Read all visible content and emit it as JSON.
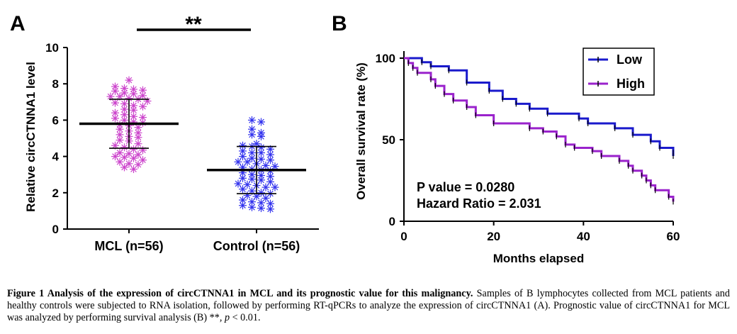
{
  "chart_data": [
    {
      "panel": "A",
      "type": "scatter",
      "ylabel": "Relative circCTNNA1 level",
      "ylim": [
        0,
        10
      ],
      "yticks": [
        0,
        2,
        4,
        6,
        8,
        10
      ],
      "categories": [
        "MCL (n=56)",
        "Control (n=56)"
      ],
      "significance": "**",
      "groups": [
        {
          "name": "MCL (n=56)",
          "color": "#cc44cc",
          "mean": 5.8,
          "sd": 1.35,
          "values": [
            8.2,
            7.85,
            7.75,
            7.7,
            7.65,
            7.6,
            7.5,
            7.45,
            7.35,
            7.3,
            7.3,
            7.2,
            7.15,
            7.05,
            6.95,
            6.9,
            6.8,
            6.75,
            6.6,
            6.55,
            6.4,
            6.3,
            6.2,
            6.15,
            6.1,
            6.0,
            5.9,
            5.85,
            5.75,
            5.7,
            5.6,
            5.5,
            5.4,
            5.3,
            5.2,
            5.1,
            5.05,
            4.9,
            4.85,
            4.7,
            4.6,
            4.5,
            4.4,
            4.35,
            4.2,
            4.15,
            4.1,
            4.0,
            3.95,
            3.9,
            3.8,
            3.7,
            3.6,
            3.55,
            3.4,
            3.3
          ]
        },
        {
          "name": "Control (n=56)",
          "color": "#3333ee",
          "mean": 3.25,
          "sd": 1.3,
          "values": [
            6.0,
            5.9,
            5.5,
            5.3,
            5.2,
            5.1,
            4.7,
            4.6,
            4.55,
            4.5,
            4.4,
            4.3,
            4.2,
            4.2,
            4.1,
            4.0,
            3.9,
            3.85,
            3.8,
            3.7,
            3.7,
            3.6,
            3.5,
            3.45,
            3.4,
            3.3,
            3.25,
            3.2,
            3.1,
            3.0,
            2.95,
            2.9,
            2.8,
            2.75,
            2.7,
            2.6,
            2.5,
            2.45,
            2.4,
            2.3,
            2.3,
            2.2,
            2.1,
            2.0,
            1.95,
            1.85,
            1.8,
            1.7,
            1.6,
            1.5,
            1.45,
            1.4,
            1.3,
            1.2,
            1.15,
            1.1
          ]
        }
      ]
    },
    {
      "panel": "B",
      "type": "line",
      "xlabel": "Months elapsed",
      "ylabel": "Overall survival rate (%)",
      "xlim": [
        0,
        60
      ],
      "ylim": [
        0,
        100
      ],
      "xticks": [
        0,
        20,
        40,
        60
      ],
      "yticks": [
        0,
        50,
        100
      ],
      "series": [
        {
          "name": "Low",
          "color": "#1a1acc",
          "points": [
            [
              0,
              100
            ],
            [
              4,
              97.5
            ],
            [
              6,
              95
            ],
            [
              10,
              92.5
            ],
            [
              14,
              85
            ],
            [
              19,
              80
            ],
            [
              22,
              75
            ],
            [
              25,
              72
            ],
            [
              28,
              69
            ],
            [
              32,
              66
            ],
            [
              39,
              63
            ],
            [
              41,
              60
            ],
            [
              47,
              57
            ],
            [
              51,
              53
            ],
            [
              55,
              49
            ],
            [
              57,
              45
            ],
            [
              60,
              42
            ],
            [
              60,
              40
            ]
          ]
        },
        {
          "name": "High",
          "color": "#9a22cc",
          "points": [
            [
              0,
              100
            ],
            [
              1,
              97
            ],
            [
              2,
              94
            ],
            [
              3,
              91
            ],
            [
              6,
              87
            ],
            [
              7,
              83
            ],
            [
              9,
              78
            ],
            [
              11,
              74
            ],
            [
              14,
              70
            ],
            [
              16,
              65
            ],
            [
              20,
              60
            ],
            [
              28,
              57
            ],
            [
              31,
              55
            ],
            [
              34,
              52
            ],
            [
              36,
              47
            ],
            [
              38,
              45
            ],
            [
              42,
              43
            ],
            [
              44,
              40
            ],
            [
              48,
              37
            ],
            [
              50,
              34
            ],
            [
              51,
              31
            ],
            [
              53,
              28
            ],
            [
              54,
              25
            ],
            [
              55,
              22
            ],
            [
              56,
              19
            ],
            [
              59,
              15
            ],
            [
              60,
              12
            ]
          ]
        }
      ],
      "annotations": [
        "P value = 0.0280",
        "Hazard Ratio = 2.031"
      ]
    }
  ],
  "figure": {
    "label_a": "A",
    "label_b": "B",
    "a_ylabel": "Relative circCTNNA1 level",
    "a_sig": "**",
    "b_ylabel": "Overall survival rate (%)",
    "b_xlabel": "Months elapsed",
    "legend_low": "Low",
    "legend_high": "High",
    "p_value": "P value = 0.0280",
    "hazard_ratio": "Hazard Ratio = 2.031"
  },
  "caption": {
    "title": "Figure 1 Analysis of the expression of circCTNNA1 in MCL and its prognostic value for this malignancy.",
    "body": " Samples of B lymphocytes collected from MCL patients and healthy controls were subjected to RNA isolation, followed by performing RT-qPCRs to analyze the expression of circCTNNA1 (A). Prognostic value of circCTNNA1 for MCL was analyzed by performing survival analysis (B) **, ",
    "p_label": "p",
    "tail": " < 0.01."
  }
}
